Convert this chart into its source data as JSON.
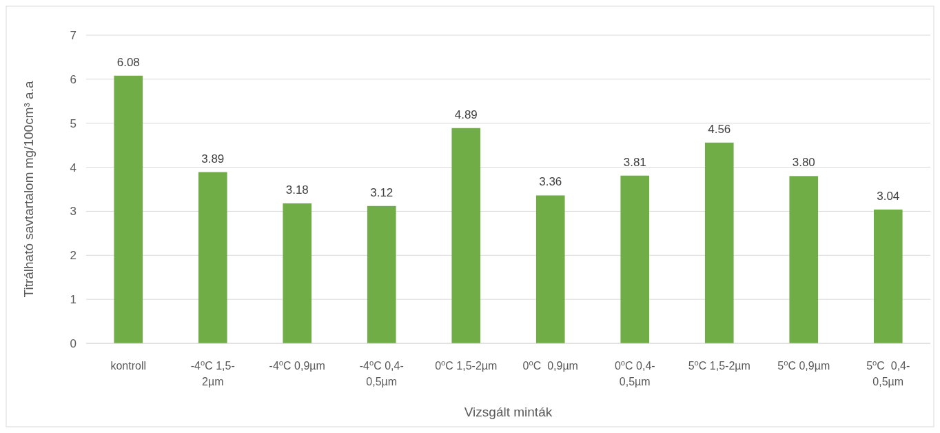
{
  "chart_data": {
    "type": "bar",
    "xlabel": "Vizsgált minták",
    "ylabel": "Titrálható savtartalom mg/100cm³ a.a",
    "categories": [
      "kontroll",
      "-4$^{o}$C 1,5-2µm",
      "-4$^{o}$C 0,9µm",
      "-4$^{o}$C 0,4-0,5µm",
      "0$^{o}$C 1,5-2µm",
      "0$^{o}$C  0,9µm",
      "0$^{o}$C 0,4-0,5µm",
      "5$^{o}$C 1,5-2µm",
      "5$^{o}$C 0,9µm",
      "5$^{o}$C  0,4-0,5µm"
    ],
    "values": [
      6.08,
      3.89,
      3.18,
      3.12,
      4.89,
      3.36,
      3.81,
      4.56,
      3.8,
      3.04
    ],
    "value_labels": [
      "6.08",
      "3.89",
      "3.18",
      "3.12",
      "4.89",
      "3.36",
      "3.81",
      "4.56",
      "3.80",
      "3.04"
    ],
    "color": "#70ad47",
    "ylim": [
      0,
      7
    ],
    "yticks": [
      0,
      1,
      2,
      3,
      4,
      5,
      6,
      7
    ],
    "grid": "y"
  }
}
